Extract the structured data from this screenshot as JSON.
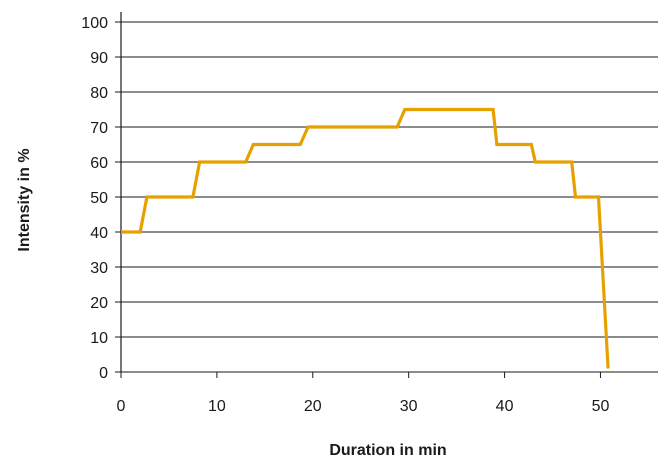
{
  "chart_data": {
    "type": "line",
    "title": "",
    "xlabel": "Duration in min",
    "ylabel": "Intensity in %",
    "xlim": [
      0,
      56
    ],
    "ylim": [
      0,
      100
    ],
    "x_ticks": [
      0,
      10,
      20,
      30,
      40,
      50
    ],
    "y_ticks": [
      0,
      10,
      20,
      30,
      40,
      50,
      60,
      70,
      80,
      90,
      100
    ],
    "grid": "horizontal",
    "legend": "none",
    "series": [
      {
        "color": "#E6A100",
        "points": [
          [
            0,
            40
          ],
          [
            2,
            40
          ],
          [
            2.7,
            50
          ],
          [
            7.5,
            50
          ],
          [
            8.2,
            60
          ],
          [
            13,
            60
          ],
          [
            13.8,
            65
          ],
          [
            18.7,
            65
          ],
          [
            19.5,
            70
          ],
          [
            28.8,
            70
          ],
          [
            29.6,
            75
          ],
          [
            38.8,
            75
          ],
          [
            39.2,
            65
          ],
          [
            42.8,
            65
          ],
          [
            43.2,
            60
          ],
          [
            47,
            60
          ],
          [
            47.4,
            50
          ],
          [
            49.8,
            50
          ],
          [
            50.8,
            1
          ]
        ]
      }
    ]
  }
}
